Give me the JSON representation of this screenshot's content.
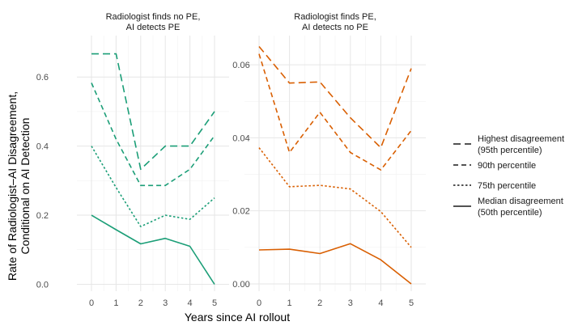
{
  "chart_data": {
    "type": "line",
    "xlabel": "Years since AI rollout",
    "ylabel_line1": "Rate of Radiologist–AI Disagreement,",
    "ylabel_line2": "Conditional on AI Detection",
    "x": [
      0,
      1,
      2,
      3,
      4,
      5
    ],
    "legend": {
      "placement": "right",
      "items": [
        {
          "key": "p95",
          "line1": "Highest disagreement",
          "line2": "(95th percentile)",
          "dash": "dashed-long"
        },
        {
          "key": "p90",
          "line1": "90th percentile",
          "line2": "",
          "dash": "dashed"
        },
        {
          "key": "p75",
          "line1": "75th percentile",
          "line2": "",
          "dash": "dotted"
        },
        {
          "key": "p50",
          "line1": "Median disagreement",
          "line2": "(50th percentile)",
          "dash": "solid"
        }
      ]
    },
    "panels": [
      {
        "title_line1": "Radiologist finds no PE,",
        "title_line2": "AI detects PE",
        "color": "#1b9e77",
        "ylim": [
          -0.02,
          0.72
        ],
        "yticks": [
          0.0,
          0.2,
          0.4,
          0.6
        ],
        "ytick_labels": [
          "0.0",
          "0.2",
          "0.4",
          "0.6"
        ],
        "series": [
          {
            "key": "p95",
            "values": [
              0.667,
              0.667,
              0.333,
              0.4,
              0.4,
              0.5
            ]
          },
          {
            "key": "p90",
            "values": [
              0.583,
              0.42,
              0.286,
              0.286,
              0.333,
              0.43
            ]
          },
          {
            "key": "p75",
            "values": [
              0.4,
              0.28,
              0.167,
              0.2,
              0.188,
              0.25
            ]
          },
          {
            "key": "p50",
            "values": [
              0.2,
              0.158,
              0.117,
              0.133,
              0.11,
              0.0
            ]
          }
        ]
      },
      {
        "title_line1": "Radiologist finds PE,",
        "title_line2": "AI detects no PE",
        "color": "#d95f02",
        "ylim": [
          -0.002,
          0.068
        ],
        "yticks": [
          0.0,
          0.02,
          0.04,
          0.06
        ],
        "ytick_labels": [
          "0.00",
          "0.02",
          "0.04",
          "0.06"
        ],
        "series": [
          {
            "key": "p95",
            "values": [
              0.065,
              0.055,
              0.0553,
              0.0455,
              0.0373,
              0.059
            ]
          },
          {
            "key": "p90",
            "values": [
              0.063,
              0.036,
              0.047,
              0.036,
              0.0312,
              0.042
            ]
          },
          {
            "key": "p75",
            "values": [
              0.0373,
              0.0266,
              0.027,
              0.026,
              0.0198,
              0.01
            ]
          },
          {
            "key": "p50",
            "values": [
              0.0093,
              0.0095,
              0.0083,
              0.011,
              0.0066,
              0.0
            ]
          }
        ]
      }
    ]
  }
}
